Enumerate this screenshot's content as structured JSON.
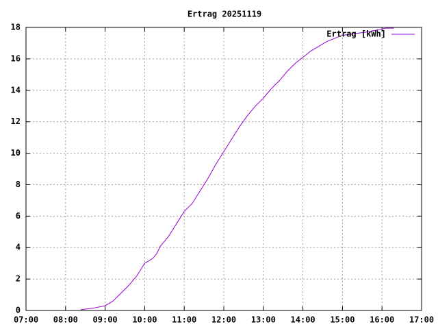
{
  "chart_data": {
    "type": "line",
    "title": "Ertrag 20251119",
    "x": [
      8.38,
      8.7,
      9.0,
      9.2,
      9.4,
      9.6,
      9.8,
      9.9,
      10.0,
      10.2,
      10.3,
      10.4,
      10.6,
      10.8,
      11.0,
      11.2,
      11.4,
      11.6,
      11.8,
      12.0,
      12.2,
      12.4,
      12.6,
      12.8,
      13.0,
      13.2,
      13.4,
      13.6,
      13.8,
      14.0,
      14.2,
      14.4,
      14.6,
      14.8,
      15.0,
      15.3,
      15.6,
      15.9,
      16.1,
      16.3
    ],
    "series": [
      {
        "name": "Ertrag [kWh]",
        "color": "#9400d3",
        "values": [
          0.05,
          0.15,
          0.3,
          0.6,
          1.1,
          1.6,
          2.2,
          2.6,
          3.0,
          3.3,
          3.6,
          4.1,
          4.7,
          5.5,
          6.3,
          6.8,
          7.6,
          8.4,
          9.3,
          10.1,
          10.9,
          11.7,
          12.4,
          13.0,
          13.5,
          14.1,
          14.6,
          15.2,
          15.7,
          16.1,
          16.5,
          16.8,
          17.1,
          17.3,
          17.5,
          17.6,
          17.7,
          17.85,
          17.95,
          17.95
        ]
      }
    ],
    "xlim": [
      7,
      17
    ],
    "xticks": [
      {
        "value": 7,
        "label": "07:00"
      },
      {
        "value": 8,
        "label": "08:00"
      },
      {
        "value": 9,
        "label": "09:00"
      },
      {
        "value": 10,
        "label": "10:00"
      },
      {
        "value": 11,
        "label": "11:00"
      },
      {
        "value": 12,
        "label": "12:00"
      },
      {
        "value": 13,
        "label": "13:00"
      },
      {
        "value": 14,
        "label": "14:00"
      },
      {
        "value": 15,
        "label": "15:00"
      },
      {
        "value": 16,
        "label": "16:00"
      },
      {
        "value": 17,
        "label": "17:00"
      }
    ],
    "ylim": [
      0,
      18
    ],
    "yticks": [
      0,
      2,
      4,
      6,
      8,
      10,
      12,
      14,
      16,
      18
    ],
    "grid": true,
    "legend": "top-right"
  }
}
